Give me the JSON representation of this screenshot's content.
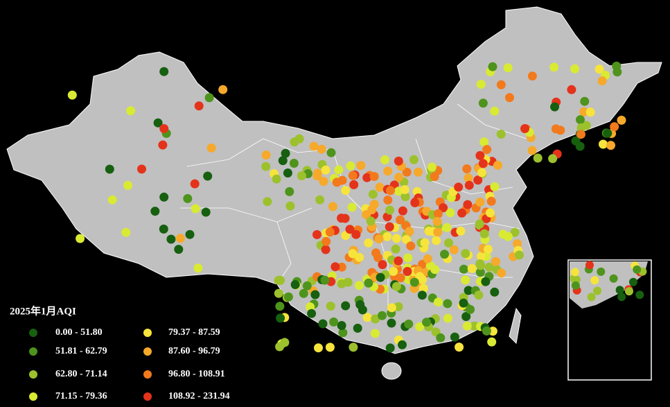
{
  "legend": {
    "title": "2025年1月AQI",
    "classes": [
      {
        "label": "0.00 - 51.80",
        "color": "#16600f"
      },
      {
        "label": "51.81 - 62.79",
        "color": "#4e941c"
      },
      {
        "label": "62.80 - 71.14",
        "color": "#9cc12c"
      },
      {
        "label": "71.15 - 79.36",
        "color": "#d9ea33"
      },
      {
        "label": "79.37 - 87.59",
        "color": "#f6e43c"
      },
      {
        "label": "87.60 - 96.79",
        "color": "#f6a92a"
      },
      {
        "label": "96.80 - 108.91",
        "color": "#f27a1c"
      },
      {
        "label": "108.92 - 231.94",
        "color": "#e4331b"
      }
    ]
  }
}
